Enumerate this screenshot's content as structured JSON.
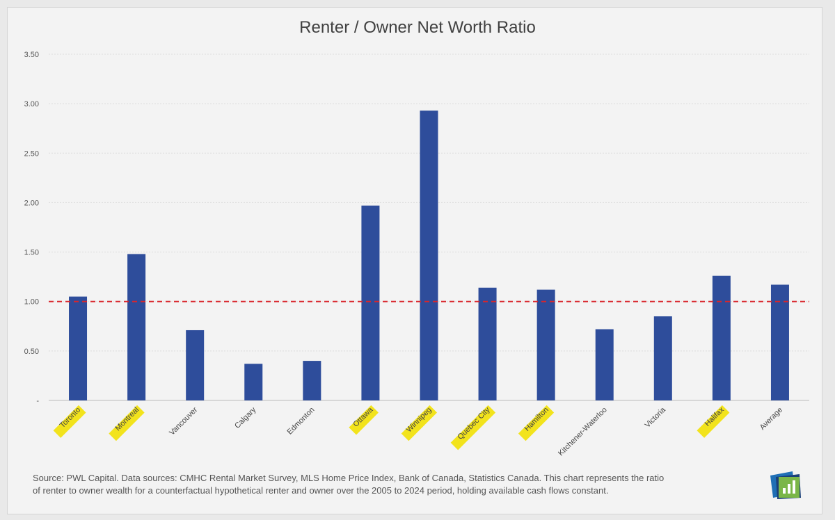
{
  "chart_data": {
    "type": "bar",
    "title": "Renter / Owner Net Worth Ratio",
    "categories": [
      "Toronto",
      "Montreal",
      "Vancouver",
      "Calgary",
      "Edmonton",
      "Ottawa",
      "Winnipeg",
      "Quebec City",
      "Hamilton",
      "Kitchener-Waterloo",
      "Victoria",
      "Halifax",
      "Average"
    ],
    "values": [
      1.05,
      1.48,
      0.71,
      0.37,
      0.4,
      1.97,
      2.93,
      1.14,
      1.12,
      0.72,
      0.85,
      1.26,
      1.17
    ],
    "highlighted": [
      true,
      true,
      false,
      false,
      false,
      true,
      true,
      true,
      true,
      false,
      false,
      true,
      false
    ],
    "ylim": [
      0,
      3.5
    ],
    "yticks": [
      "-",
      "0.50",
      "1.00",
      "1.50",
      "2.00",
      "2.50",
      "3.00",
      "3.50"
    ],
    "reference_line": {
      "value": 1.0,
      "color": "#d9262c",
      "style": "dashed"
    },
    "bar_color": "#2e4d9b",
    "highlight_color": "#f2e31c",
    "grid": true,
    "xlabel": "",
    "ylabel": ""
  },
  "footer": {
    "source_line1": "Source: PWL Capital. Data sources: CMHC Rental Market Survey, MLS Home Price Index, Bank of Canada, Statistics Canada. This chart represents the ratio",
    "source_line2": "of renter to owner wealth for a counterfactual hypothetical renter and owner over the 2005 to 2024 period, holding available cash flows constant."
  },
  "logo": {
    "icon": "bar-chart-logo-icon"
  }
}
